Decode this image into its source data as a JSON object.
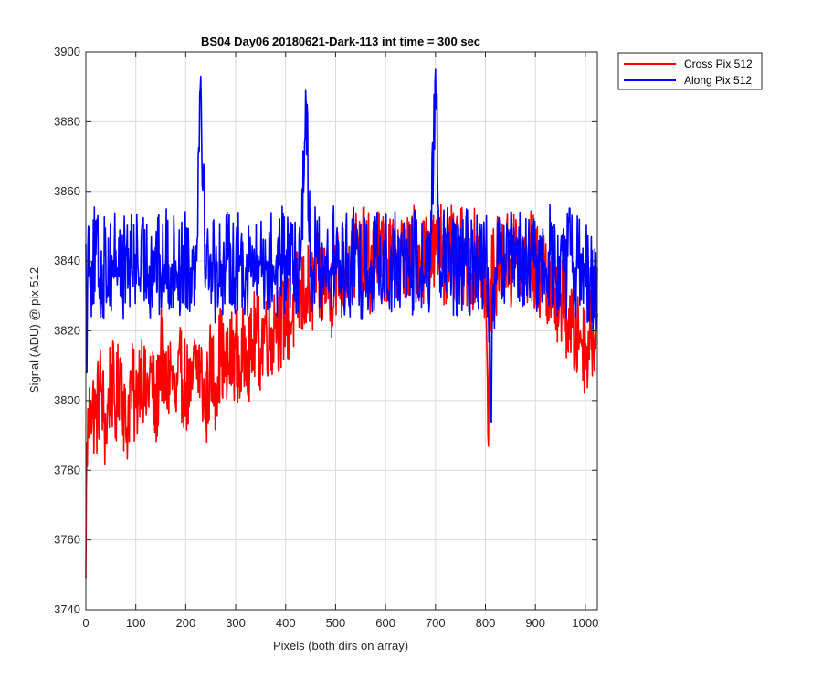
{
  "chart_data": {
    "type": "line",
    "title": "BS04 Day06 20180621-Dark-113 int time = 300 sec",
    "xlabel": "Pixels (both dirs on array)",
    "ylabel": "Signal (ADU) @ pix 512",
    "xlim": [
      0,
      1024
    ],
    "ylim": [
      3740,
      3900
    ],
    "x_ticks": [
      0,
      100,
      200,
      300,
      400,
      500,
      600,
      700,
      800,
      900,
      1000
    ],
    "y_ticks": [
      3740,
      3760,
      3780,
      3800,
      3820,
      3840,
      3860,
      3880,
      3900
    ],
    "grid": true,
    "legend_location": "outside-top-right",
    "series": [
      {
        "name": "Cross Pix 512",
        "color": "#ff0000",
        "description": "Noisy trace, low at start (~3750 at x=0), rising from ~3800 to ~3840 across the array, band roughly 3780-3880.",
        "x": [
          0,
          2,
          5,
          10,
          20,
          30,
          40,
          50,
          60,
          70,
          80,
          90,
          100,
          110,
          120,
          130,
          140,
          150,
          160,
          170,
          180,
          190,
          200,
          210,
          220,
          230,
          240,
          250,
          260,
          270,
          280,
          290,
          300,
          310,
          320,
          330,
          340,
          350,
          360,
          370,
          380,
          390,
          400,
          410,
          420,
          430,
          440,
          450,
          460,
          470,
          480,
          490,
          500,
          510,
          520,
          530,
          540,
          550,
          560,
          570,
          580,
          590,
          600,
          610,
          620,
          630,
          640,
          650,
          660,
          670,
          680,
          690,
          700,
          710,
          720,
          730,
          740,
          750,
          760,
          770,
          780,
          790,
          800,
          805,
          810,
          820,
          830,
          840,
          850,
          860,
          870,
          880,
          890,
          900,
          910,
          920,
          930,
          940,
          950,
          960,
          970,
          980,
          990,
          1000,
          1010,
          1020,
          1024
        ],
        "values": [
          3749,
          3788,
          3792,
          3800,
          3795,
          3805,
          3790,
          3808,
          3797,
          3812,
          3790,
          3805,
          3798,
          3812,
          3800,
          3808,
          3795,
          3815,
          3802,
          3810,
          3798,
          3808,
          3805,
          3800,
          3812,
          3808,
          3798,
          3810,
          3805,
          3815,
          3807,
          3812,
          3815,
          3808,
          3818,
          3812,
          3820,
          3815,
          3822,
          3818,
          3825,
          3820,
          3826,
          3822,
          3830,
          3828,
          3832,
          3830,
          3835,
          3833,
          3836,
          3830,
          3838,
          3835,
          3840,
          3838,
          3842,
          3840,
          3843,
          3838,
          3845,
          3840,
          3842,
          3838,
          3844,
          3840,
          3842,
          3838,
          3845,
          3840,
          3843,
          3840,
          3842,
          3845,
          3840,
          3843,
          3838,
          3842,
          3840,
          3838,
          3842,
          3840,
          3835,
          3790,
          3832,
          3838,
          3840,
          3842,
          3838,
          3843,
          3840,
          3838,
          3842,
          3838,
          3835,
          3838,
          3830,
          3832,
          3828,
          3825,
          3822,
          3818,
          3820,
          3815,
          3818,
          3820,
          3838
        ]
      },
      {
        "name": "Along Pix 512",
        "color": "#0000ff",
        "description": "Noisy trace centred near 3838 with large spikes up to ~3895 and down to ~3790, band roughly 3805-3880.",
        "x": [
          0,
          2,
          5,
          10,
          20,
          30,
          40,
          50,
          60,
          70,
          80,
          90,
          100,
          110,
          120,
          130,
          140,
          150,
          160,
          170,
          180,
          190,
          200,
          210,
          220,
          230,
          240,
          250,
          260,
          270,
          280,
          290,
          300,
          310,
          320,
          330,
          340,
          350,
          360,
          370,
          380,
          390,
          400,
          410,
          420,
          430,
          440,
          450,
          460,
          470,
          480,
          490,
          500,
          510,
          520,
          530,
          540,
          550,
          560,
          570,
          580,
          590,
          600,
          610,
          620,
          630,
          640,
          650,
          660,
          670,
          680,
          690,
          700,
          710,
          720,
          730,
          740,
          750,
          760,
          770,
          780,
          790,
          800,
          805,
          810,
          820,
          830,
          840,
          850,
          860,
          870,
          880,
          890,
          900,
          910,
          920,
          930,
          940,
          950,
          960,
          970,
          980,
          990,
          1000,
          1010,
          1020,
          1024
        ],
        "values": [
          3845,
          3808,
          3850,
          3838,
          3842,
          3835,
          3840,
          3838,
          3843,
          3836,
          3840,
          3838,
          3842,
          3837,
          3840,
          3838,
          3842,
          3836,
          3841,
          3838,
          3840,
          3837,
          3842,
          3838,
          3840,
          3893,
          3838,
          3842,
          3836,
          3840,
          3838,
          3843,
          3837,
          3841,
          3838,
          3840,
          3836,
          3842,
          3838,
          3840,
          3837,
          3842,
          3838,
          3840,
          3836,
          3841,
          3889,
          3838,
          3842,
          3837,
          3840,
          3838,
          3843,
          3836,
          3840,
          3838,
          3842,
          3837,
          3840,
          3838,
          3841,
          3836,
          3842,
          3838,
          3840,
          3837,
          3842,
          3838,
          3840,
          3836,
          3841,
          3838,
          3895,
          3837,
          3842,
          3838,
          3840,
          3836,
          3841,
          3838,
          3840,
          3837,
          3842,
          3838,
          3798,
          3838,
          3840,
          3836,
          3842,
          3838,
          3840,
          3837,
          3841,
          3838,
          3840,
          3836,
          3842,
          3838,
          3840,
          3837,
          3842,
          3838,
          3840,
          3836,
          3838,
          3830,
          3825
        ]
      }
    ]
  }
}
